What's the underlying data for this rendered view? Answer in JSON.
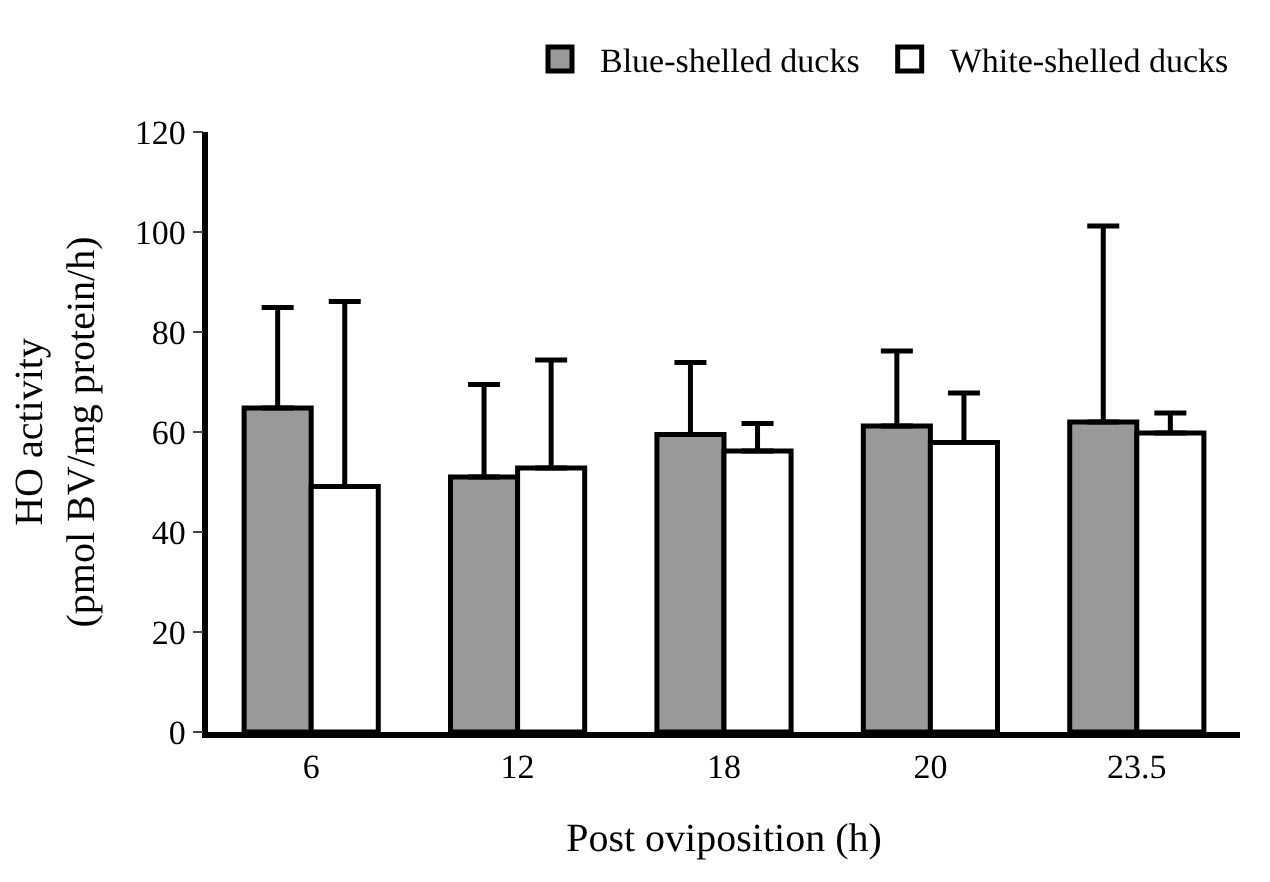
{
  "chart_data": {
    "type": "bar",
    "xlabel": "Post oviposition (h)",
    "ylabel": "HO activity\n(pmol BV/mg protein/h)",
    "categories": [
      "6",
      "12",
      "18",
      "20",
      "23.5"
    ],
    "series": [
      {
        "name": "Blue-shelled ducks",
        "color": "#999999",
        "values": [
          64.8,
          51,
          59.5,
          61.2,
          62
        ],
        "errors": [
          [
            64.8,
            84.9
          ],
          [
            51,
            69.5
          ],
          [
            59.5,
            73.9
          ],
          [
            61.2,
            76.2
          ],
          [
            62,
            101.2
          ]
        ]
      },
      {
        "name": "White-shelled ducks",
        "color": "#ffffff",
        "values": [
          49.1,
          52.8,
          56.2,
          57.9,
          59.8
        ],
        "errors": [
          [
            49.1,
            86.1
          ],
          [
            52.8,
            74.4
          ],
          [
            56.2,
            61.7
          ],
          [
            57.9,
            67.8
          ],
          [
            59.8,
            63.8
          ]
        ]
      }
    ],
    "ylim": [
      0,
      120
    ],
    "yticks": [
      0,
      20,
      40,
      60,
      80,
      100,
      120
    ],
    "legend": "top right"
  }
}
